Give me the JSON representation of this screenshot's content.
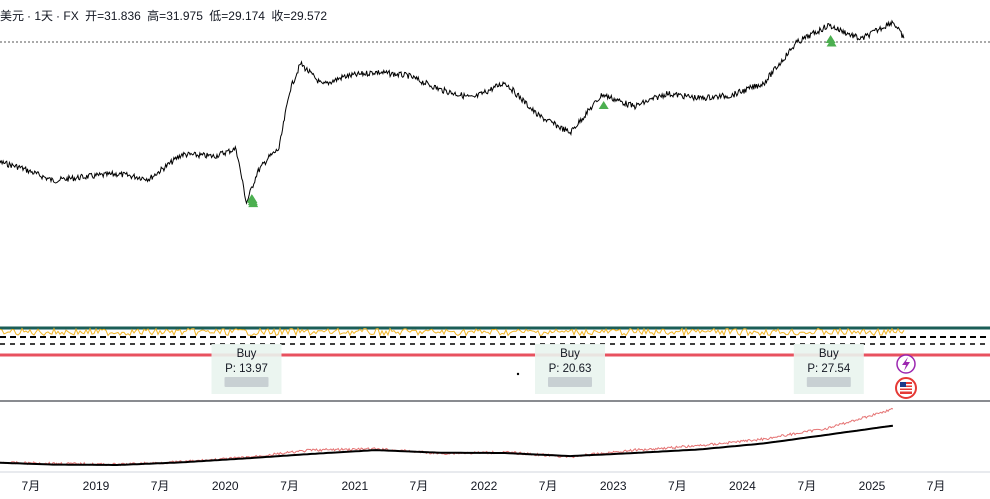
{
  "header": {
    "symbol": "美元",
    "interval": "1天",
    "exchange": "FX",
    "open_label": "开",
    "open": "31.836",
    "high_label": "高",
    "high": "31.975",
    "low_label": "低",
    "low": "29.174",
    "close_label": "收",
    "close": "29.572"
  },
  "colors": {
    "price_line": "#000000",
    "buy_marker": "#4caf50",
    "osc_top_line": "#1b5e57",
    "osc_noise": "#f0b429",
    "osc_bottom_line": "#e8515f",
    "ma_line": "#000000",
    "ratio_line": "#e57373"
  },
  "chart_data": {
    "type": "line",
    "price_series": {
      "x": [
        "2018-03",
        "2018-06",
        "2018-09",
        "2018-12",
        "2019-03",
        "2019-06",
        "2019-09",
        "2019-12",
        "2020-02",
        "2020-03",
        "2020-04",
        "2020-05",
        "2020-06",
        "2020-07",
        "2020-08",
        "2020-10",
        "2020-12",
        "2021-03",
        "2021-06",
        "2021-09",
        "2021-12",
        "2022-03",
        "2022-06",
        "2022-09",
        "2022-12",
        "2023-03",
        "2023-06",
        "2023-09",
        "2023-12",
        "2024-03",
        "2024-06",
        "2024-09",
        "2024-12",
        "2025-03",
        "2025-04"
      ],
      "y": [
        16.7,
        15.8,
        14.4,
        14.8,
        15.1,
        14.6,
        17.2,
        17.0,
        17.8,
        12.0,
        15.3,
        16.8,
        17.8,
        24.0,
        26.9,
        24.6,
        25.5,
        26.0,
        25.6,
        24.1,
        23.2,
        24.9,
        21.4,
        19.5,
        23.6,
        22.3,
        23.7,
        23.2,
        23.5,
        24.8,
        29.1,
        31.0,
        29.5,
        31.4,
        29.6
      ]
    },
    "buy_marker_dates": [
      "2020-03-16",
      "2020-03-18",
      "2020-03-19",
      "2020-03-20",
      "2022-12-05",
      "2024-09-06",
      "2024-09-09"
    ],
    "signals": [
      {
        "label": "Buy",
        "price_text": "P: 13.97",
        "date": "2020-03"
      },
      {
        "label": "Buy",
        "price_text": "P: 20.63",
        "date": "2022-09"
      },
      {
        "label": "Buy",
        "price_text": "P: 27.54",
        "date": "2024-09"
      }
    ],
    "ratio_series": {
      "x": [
        "2018-03",
        "2018-09",
        "2019-03",
        "2019-09",
        "2020-03",
        "2020-09",
        "2021-03",
        "2021-09",
        "2022-03",
        "2022-09",
        "2023-03",
        "2023-09",
        "2024-03",
        "2024-09",
        "2025-03"
      ],
      "y": [
        0.4,
        0.35,
        0.3,
        0.42,
        0.62,
        0.95,
        1.0,
        0.8,
        0.85,
        0.65,
        0.95,
        1.15,
        1.45,
        1.95,
        2.8
      ]
    },
    "ma_series": {
      "x": [
        "2018-03",
        "2018-09",
        "2019-03",
        "2019-09",
        "2020-03",
        "2020-09",
        "2021-03",
        "2021-09",
        "2022-03",
        "2022-09",
        "2023-03",
        "2023-09",
        "2024-03",
        "2024-09",
        "2025-03"
      ],
      "y": [
        0.4,
        0.3,
        0.28,
        0.4,
        0.58,
        0.78,
        0.95,
        0.83,
        0.82,
        0.68,
        0.82,
        0.98,
        1.25,
        1.65,
        2.05
      ]
    },
    "x_ticks": [
      {
        "label": "7月",
        "date": "2018-07-01"
      },
      {
        "label": "2019",
        "date": "2019-01-01"
      },
      {
        "label": "7月",
        "date": "2019-07-01"
      },
      {
        "label": "2020",
        "date": "2020-01-01"
      },
      {
        "label": "7月",
        "date": "2020-07-01"
      },
      {
        "label": "2021",
        "date": "2021-01-01"
      },
      {
        "label": "7月",
        "date": "2021-07-01"
      },
      {
        "label": "2022",
        "date": "2022-01-01"
      },
      {
        "label": "7月",
        "date": "2022-07-01"
      },
      {
        "label": "2023",
        "date": "2023-01-01"
      },
      {
        "label": "7月",
        "date": "2023-07-01"
      },
      {
        "label": "2024",
        "date": "2024-01-01"
      },
      {
        "label": "7月",
        "date": "2024-07-01"
      },
      {
        "label": "2025",
        "date": "2025-01-01"
      },
      {
        "label": "7月",
        "date": "2025-07-01"
      }
    ]
  }
}
